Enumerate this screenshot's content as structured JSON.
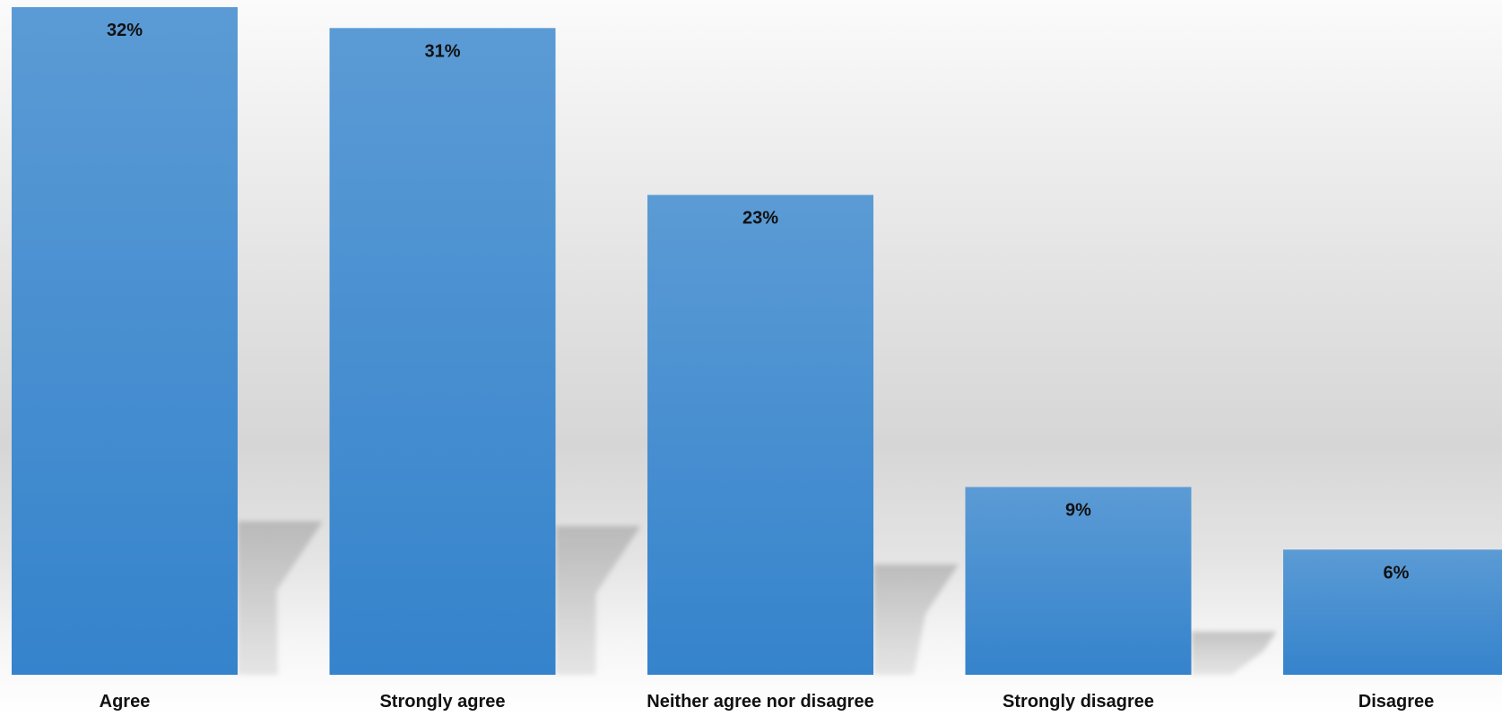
{
  "chart_data": {
    "type": "bar",
    "categories": [
      "Agree",
      "Strongly agree",
      "Neither agree nor disagree",
      "Strongly disagree",
      "Disagree"
    ],
    "values": [
      32,
      31,
      23,
      9,
      6
    ],
    "value_labels": [
      "32%",
      "31%",
      "23%",
      "9%",
      "6%"
    ],
    "value_unit": "%",
    "title": "",
    "xlabel": "",
    "ylabel": "",
    "ylim": [
      0,
      32
    ],
    "grid": false,
    "legend": "none",
    "bar_color_top": "#5b9bd5",
    "bar_color_bottom": "#3583cc"
  }
}
